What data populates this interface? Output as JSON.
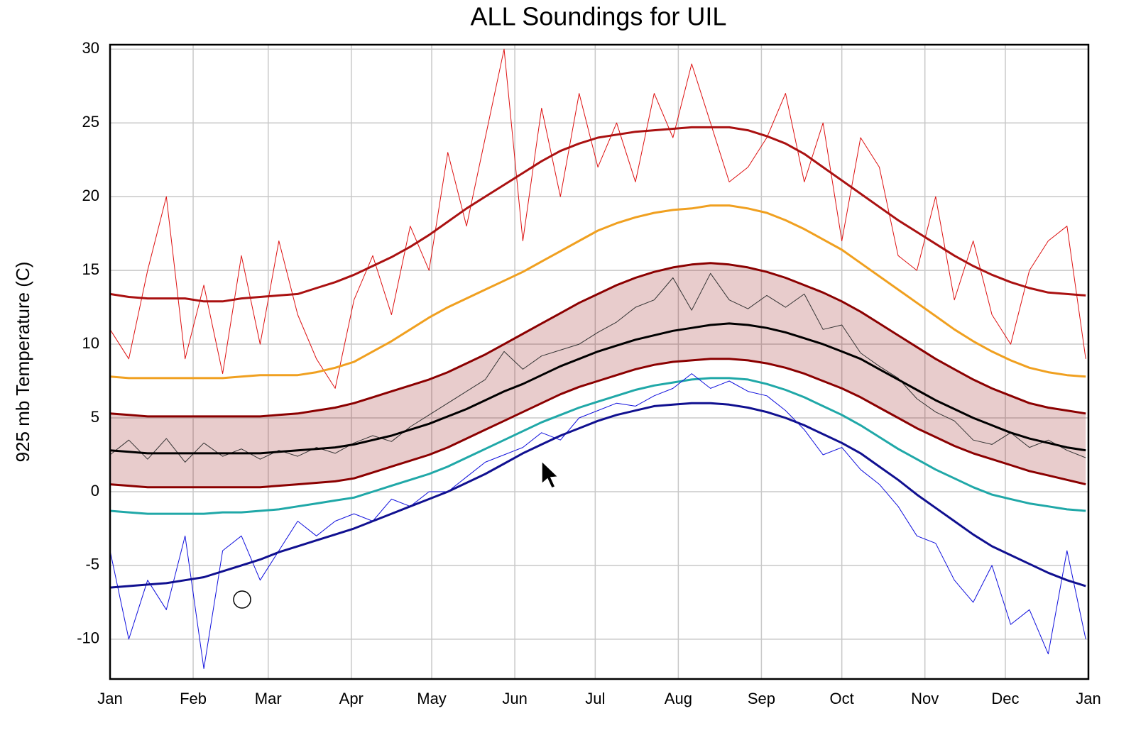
{
  "chart_data": {
    "type": "line",
    "title": "ALL Soundings for UIL",
    "y_label": "925 mb Temperature (C)",
    "x": [
      0,
      7,
      14,
      21,
      28,
      35,
      42,
      49,
      56,
      63,
      70,
      77,
      84,
      91,
      98,
      105,
      112,
      119,
      126,
      133,
      140,
      147,
      154,
      161,
      168,
      175,
      182,
      189,
      196,
      203,
      210,
      217,
      224,
      231,
      238,
      245,
      252,
      259,
      266,
      273,
      280,
      287,
      294,
      301,
      308,
      315,
      322,
      329,
      336,
      343,
      350,
      357,
      364
    ],
    "xlim": [
      0,
      365
    ],
    "xticks": [
      {
        "value": 0,
        "label": "Jan"
      },
      {
        "value": 31,
        "label": "Feb"
      },
      {
        "value": 59,
        "label": "Mar"
      },
      {
        "value": 90,
        "label": "Apr"
      },
      {
        "value": 120,
        "label": "May"
      },
      {
        "value": 151,
        "label": "Jun"
      },
      {
        "value": 181,
        "label": "Jul"
      },
      {
        "value": 212,
        "label": "Aug"
      },
      {
        "value": 243,
        "label": "Sep"
      },
      {
        "value": 273,
        "label": "Oct"
      },
      {
        "value": 304,
        "label": "Nov"
      },
      {
        "value": 334,
        "label": "Dec"
      },
      {
        "value": 365,
        "label": "Jan"
      }
    ],
    "ylim": [
      -12.7,
      30.3
    ],
    "yticks": [
      -10,
      -5,
      0,
      5,
      10,
      15,
      20,
      25,
      30
    ],
    "grid": true,
    "series": [
      {
        "color": "#8b0000",
        "width": 3,
        "fill": "rgba(139,0,0,0.2)",
        "values": [
          5.3,
          5.2,
          5.1,
          5.1,
          5.1,
          5.1,
          5.1,
          5.1,
          5.1,
          5.2,
          5.3,
          5.5,
          5.7,
          6.0,
          6.4,
          6.8,
          7.2,
          7.6,
          8.1,
          8.7,
          9.3,
          10.0,
          10.7,
          11.4,
          12.1,
          12.8,
          13.4,
          14.0,
          14.5,
          14.9,
          15.2,
          15.4,
          15.5,
          15.4,
          15.2,
          14.9,
          14.5,
          14.0,
          13.5,
          12.9,
          12.2,
          11.4,
          10.6,
          9.8,
          9.0,
          8.3,
          7.6,
          7.0,
          6.5,
          6.0,
          5.7,
          5.5,
          5.3
        ]
      },
      {
        "color": "#8b0000",
        "width": 3,
        "values": [
          0.5,
          0.4,
          0.3,
          0.3,
          0.3,
          0.3,
          0.3,
          0.3,
          0.3,
          0.4,
          0.5,
          0.6,
          0.7,
          0.9,
          1.3,
          1.7,
          2.1,
          2.5,
          3.0,
          3.6,
          4.2,
          4.8,
          5.4,
          6.0,
          6.6,
          7.1,
          7.5,
          7.9,
          8.3,
          8.6,
          8.8,
          8.9,
          9.0,
          9.0,
          8.9,
          8.7,
          8.4,
          8.0,
          7.5,
          7.0,
          6.4,
          5.7,
          5.0,
          4.3,
          3.7,
          3.1,
          2.6,
          2.2,
          1.8,
          1.4,
          1.1,
          0.8,
          0.5
        ]
      },
      {
        "color": "#dd1111",
        "width": 1,
        "values": [
          11,
          9,
          15,
          20,
          9,
          14,
          8,
          16,
          10,
          17,
          12,
          9,
          7,
          13,
          16,
          12,
          18,
          15,
          23,
          18,
          24,
          30,
          17,
          26,
          20,
          27,
          22,
          25,
          21,
          27,
          24,
          29,
          25,
          21,
          22,
          24,
          27,
          21,
          25,
          17,
          24,
          22,
          16,
          15,
          20,
          13,
          17,
          12,
          10,
          15,
          17,
          18,
          9
        ]
      },
      {
        "color": "#aa1111",
        "width": 3,
        "values": [
          13.4,
          13.2,
          13.1,
          13.1,
          13.1,
          12.9,
          12.9,
          13.1,
          13.2,
          13.3,
          13.4,
          13.8,
          14.2,
          14.7,
          15.3,
          15.9,
          16.6,
          17.4,
          18.3,
          19.2,
          20.0,
          20.8,
          21.6,
          22.4,
          23.1,
          23.6,
          24.0,
          24.2,
          24.4,
          24.5,
          24.6,
          24.7,
          24.7,
          24.7,
          24.5,
          24.1,
          23.6,
          22.9,
          22.0,
          21.1,
          20.2,
          19.3,
          18.4,
          17.6,
          16.8,
          16.0,
          15.3,
          14.7,
          14.2,
          13.8,
          13.5,
          13.4,
          13.3
        ]
      },
      {
        "color": "#f0a020",
        "width": 3,
        "values": [
          7.8,
          7.7,
          7.7,
          7.7,
          7.7,
          7.7,
          7.7,
          7.8,
          7.9,
          7.9,
          7.9,
          8.1,
          8.4,
          8.8,
          9.5,
          10.2,
          11.0,
          11.8,
          12.5,
          13.1,
          13.7,
          14.3,
          14.9,
          15.6,
          16.3,
          17.0,
          17.7,
          18.2,
          18.6,
          18.9,
          19.1,
          19.2,
          19.4,
          19.4,
          19.2,
          18.9,
          18.4,
          17.8,
          17.1,
          16.4,
          15.5,
          14.6,
          13.7,
          12.8,
          11.9,
          11.0,
          10.2,
          9.5,
          8.9,
          8.4,
          8.1,
          7.9,
          7.8
        ]
      },
      {
        "color": "#333333",
        "width": 1,
        "values": [
          2.5,
          3.5,
          2.2,
          3.6,
          2.0,
          3.3,
          2.4,
          2.9,
          2.2,
          2.8,
          2.4,
          3.0,
          2.6,
          3.3,
          3.8,
          3.4,
          4.4,
          5.2,
          6.0,
          6.8,
          7.6,
          9.5,
          8.3,
          9.2,
          9.6,
          10.0,
          10.8,
          11.5,
          12.5,
          13.0,
          14.5,
          12.3,
          14.8,
          13.0,
          12.4,
          13.3,
          12.5,
          13.4,
          11.0,
          11.3,
          9.4,
          8.5,
          7.7,
          6.3,
          5.4,
          4.8,
          3.5,
          3.2,
          4.0,
          3.0,
          3.5,
          2.8,
          2.3
        ]
      },
      {
        "color": "#000000",
        "width": 3,
        "values": [
          2.8,
          2.7,
          2.6,
          2.6,
          2.6,
          2.6,
          2.6,
          2.6,
          2.6,
          2.7,
          2.8,
          2.9,
          3.0,
          3.2,
          3.5,
          3.8,
          4.2,
          4.6,
          5.1,
          5.6,
          6.2,
          6.8,
          7.3,
          7.9,
          8.5,
          9.0,
          9.5,
          9.9,
          10.3,
          10.6,
          10.9,
          11.1,
          11.3,
          11.4,
          11.3,
          11.1,
          10.8,
          10.4,
          10.0,
          9.5,
          9.0,
          8.3,
          7.6,
          6.9,
          6.2,
          5.6,
          5.0,
          4.5,
          4.0,
          3.6,
          3.3,
          3.0,
          2.8
        ]
      },
      {
        "color": "#20a8a8",
        "width": 3,
        "values": [
          -1.3,
          -1.4,
          -1.5,
          -1.5,
          -1.5,
          -1.5,
          -1.4,
          -1.4,
          -1.3,
          -1.2,
          -1.0,
          -0.8,
          -0.6,
          -0.4,
          0.0,
          0.4,
          0.8,
          1.2,
          1.7,
          2.3,
          2.9,
          3.5,
          4.1,
          4.7,
          5.2,
          5.7,
          6.1,
          6.5,
          6.9,
          7.2,
          7.4,
          7.6,
          7.7,
          7.7,
          7.6,
          7.3,
          6.9,
          6.4,
          5.8,
          5.2,
          4.5,
          3.7,
          2.9,
          2.2,
          1.5,
          0.9,
          0.3,
          -0.2,
          -0.5,
          -0.8,
          -1.0,
          -1.2,
          -1.3
        ]
      },
      {
        "color": "#1010dd",
        "width": 1,
        "values": [
          -4,
          -10,
          -6,
          -8,
          -3,
          -12,
          -4,
          -3,
          -6,
          -4,
          -2,
          -3,
          -2,
          -1.5,
          -2,
          -0.5,
          -1,
          0,
          0,
          1,
          2,
          2.5,
          3,
          4,
          3.5,
          5,
          5.5,
          6,
          5.8,
          6.5,
          7,
          8,
          7,
          7.5,
          6.8,
          6.5,
          5.5,
          4.2,
          2.5,
          3,
          1.5,
          0.5,
          -1,
          -3,
          -3.5,
          -6,
          -7.5,
          -5,
          -9,
          -8,
          -11,
          -4,
          -10
        ]
      },
      {
        "color": "#101090",
        "width": 3,
        "values": [
          -6.5,
          -6.4,
          -6.3,
          -6.2,
          -6.0,
          -5.8,
          -5.4,
          -5.0,
          -4.6,
          -4.1,
          -3.7,
          -3.3,
          -2.9,
          -2.5,
          -2.0,
          -1.5,
          -1.0,
          -0.5,
          0.0,
          0.6,
          1.2,
          1.9,
          2.6,
          3.2,
          3.8,
          4.3,
          4.8,
          5.2,
          5.5,
          5.8,
          5.9,
          6.0,
          6.0,
          5.9,
          5.7,
          5.4,
          5.0,
          4.5,
          3.9,
          3.3,
          2.6,
          1.7,
          0.8,
          -0.2,
          -1.1,
          -2.0,
          -2.9,
          -3.7,
          -4.3,
          -4.9,
          -5.5,
          -6.0,
          -6.4
        ]
      }
    ]
  }
}
